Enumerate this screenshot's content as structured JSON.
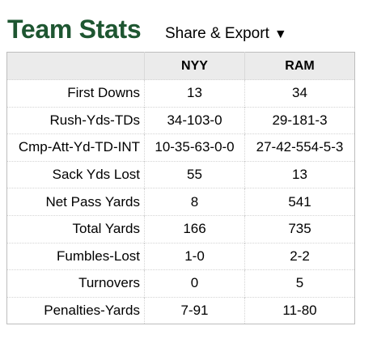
{
  "header": {
    "title": "Team Stats",
    "share_export_label": "Share & Export",
    "share_export_caret": "▼",
    "title_color": "#1e5631"
  },
  "table": {
    "columns": [
      "",
      "NYY",
      "RAM"
    ],
    "rows": [
      {
        "label": "First Downs",
        "nyy": "13",
        "ram": "34"
      },
      {
        "label": "Rush-Yds-TDs",
        "nyy": "34-103-0",
        "ram": "29-181-3"
      },
      {
        "label": "Cmp-Att-Yd-TD-INT",
        "nyy": "10-35-63-0-0",
        "ram": "27-42-554-5-3"
      },
      {
        "label": "Sack Yds Lost",
        "nyy": "55",
        "ram": "13"
      },
      {
        "label": "Net Pass Yards",
        "nyy": "8",
        "ram": "541"
      },
      {
        "label": "Total Yards",
        "nyy": "166",
        "ram": "735"
      },
      {
        "label": "Fumbles-Lost",
        "nyy": "1-0",
        "ram": "2-2"
      },
      {
        "label": "Turnovers",
        "nyy": "0",
        "ram": "5"
      },
      {
        "label": "Penalties-Yards",
        "nyy": "7-91",
        "ram": "11-80"
      }
    ]
  }
}
